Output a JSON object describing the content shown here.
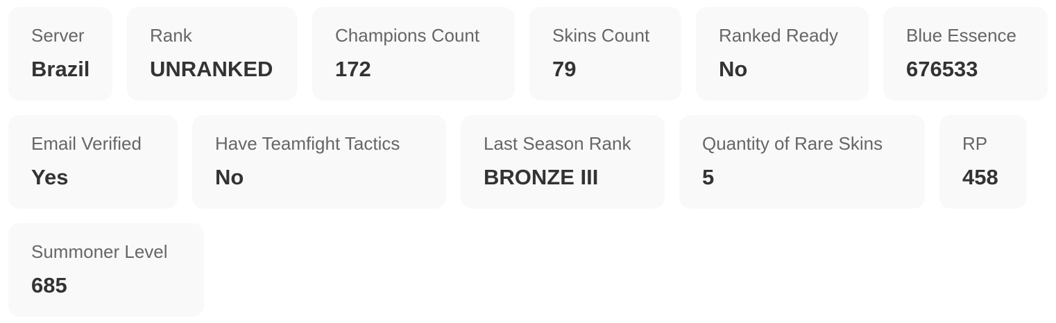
{
  "stats": [
    {
      "label": "Server",
      "value": "Brazil"
    },
    {
      "label": "Rank",
      "value": "UNRANKED"
    },
    {
      "label": "Champions Count",
      "value": "172"
    },
    {
      "label": "Skins Count",
      "value": "79"
    },
    {
      "label": "Ranked Ready",
      "value": "No"
    },
    {
      "label": "Blue Essence",
      "value": "676533"
    },
    {
      "label": "Email Verified",
      "value": "Yes"
    },
    {
      "label": "Have Teamfight Tactics",
      "value": "No"
    },
    {
      "label": "Last Season Rank",
      "value": "BRONZE III"
    },
    {
      "label": "Quantity of Rare Skins",
      "value": "5"
    },
    {
      "label": "RP",
      "value": "458"
    },
    {
      "label": "Summoner Level",
      "value": "685"
    }
  ]
}
